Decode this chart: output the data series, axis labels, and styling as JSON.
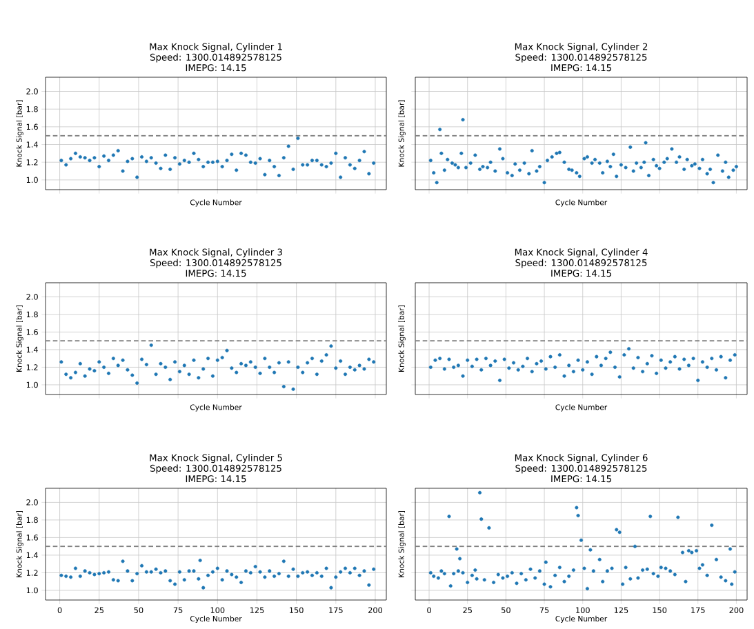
{
  "chart_data": [
    {
      "type": "scatter",
      "title": "Max Knock Signal, Cylinder 1",
      "subtitle": "Speed: 1300.014892578125",
      "annotations": [
        "IMEPG: 14.15"
      ],
      "xlabel": "Cycle Number",
      "ylabel": "Knock Signal [bar]",
      "xlim": [
        -9,
        207
      ],
      "ylim": [
        0.89,
        2.16
      ],
      "xticks": [
        0,
        25,
        50,
        75,
        100,
        125,
        150,
        175,
        200
      ],
      "yticks": [
        {
          "value": 1.0,
          "label": "1.0"
        },
        {
          "value": 1.2,
          "label": "1.2"
        },
        {
          "value": 1.4,
          "label": "1.4"
        },
        {
          "value": 1.6,
          "label": "1.6"
        },
        {
          "value": 1.8,
          "label": "1.8"
        },
        {
          "value": 2.0,
          "label": "2.0"
        }
      ],
      "tick_labels": "y",
      "grid": true,
      "marker": "circle",
      "ref_lines": [
        {
          "axis": "y",
          "value": 1.5,
          "color": "#808080",
          "line_style": "dashed"
        }
      ],
      "x": [
        1,
        4,
        7,
        10,
        13,
        16,
        19,
        22,
        25,
        28,
        31,
        34,
        37,
        40,
        43,
        46,
        49,
        52,
        55,
        58,
        61,
        64,
        67,
        70,
        73,
        76,
        79,
        82,
        85,
        88,
        91,
        94,
        97,
        100,
        103,
        106,
        109,
        112,
        115,
        118,
        121,
        124,
        127,
        130,
        133,
        136,
        139,
        142,
        145,
        148,
        151,
        154,
        157,
        160,
        163,
        166,
        169,
        172,
        175,
        178,
        181,
        184,
        187,
        190,
        193,
        196,
        199
      ],
      "series": [
        {
          "color": "#1f77b4",
          "values": [
            1.22,
            1.17,
            1.24,
            1.3,
            1.26,
            1.25,
            1.22,
            1.25,
            1.15,
            1.27,
            1.22,
            1.28,
            1.33,
            1.1,
            1.21,
            1.24,
            1.03,
            1.26,
            1.21,
            1.25,
            1.19,
            1.13,
            1.28,
            1.12,
            1.25,
            1.18,
            1.22,
            1.2,
            1.3,
            1.23,
            1.15,
            1.2,
            1.2,
            1.21,
            1.15,
            1.22,
            1.29,
            1.11,
            1.3,
            1.28,
            1.2,
            1.19,
            1.24,
            1.06,
            1.22,
            1.15,
            1.05,
            1.25,
            1.38,
            1.12,
            1.47,
            1.17,
            1.17,
            1.22,
            1.22,
            1.17,
            1.15,
            1.19,
            1.3,
            1.03,
            1.25,
            1.17,
            1.13,
            1.22,
            1.32,
            1.07,
            1.19
          ]
        }
      ]
    },
    {
      "type": "scatter",
      "title": "Max Knock Signal, Cylinder 2",
      "subtitle": "Speed: 1300.014892578125",
      "annotations": [
        "IMEPG: 14.15"
      ],
      "xlabel": "Cycle Number",
      "ylabel": "Knock Signal [bar]",
      "xlim": [
        -9,
        207
      ],
      "ylim": [
        0.89,
        2.16
      ],
      "xticks": [
        0,
        25,
        50,
        75,
        100,
        125,
        150,
        175,
        200
      ],
      "yticks": [
        {
          "value": 1.0,
          "label": null
        },
        {
          "value": 1.2,
          "label": null
        },
        {
          "value": 1.4,
          "label": null
        },
        {
          "value": 1.6,
          "label": null
        },
        {
          "value": 1.8,
          "label": null
        },
        {
          "value": 2.0,
          "label": null
        }
      ],
      "tick_labels": false,
      "grid": true,
      "marker": "circle",
      "ref_lines": [
        {
          "axis": "y",
          "value": 1.5,
          "color": "#808080",
          "line_style": "dashed"
        }
      ],
      "x": [
        1,
        3,
        5,
        7,
        8,
        10,
        12,
        15,
        17,
        19,
        21,
        22,
        24,
        27,
        30,
        33,
        35,
        38,
        40,
        43,
        46,
        48,
        51,
        54,
        56,
        59,
        62,
        65,
        67,
        70,
        72,
        75,
        77,
        80,
        83,
        85,
        88,
        91,
        93,
        96,
        98,
        101,
        103,
        106,
        108,
        111,
        113,
        116,
        118,
        120,
        122,
        125,
        128,
        131,
        133,
        135,
        138,
        140,
        141,
        143,
        146,
        148,
        150,
        153,
        155,
        158,
        161,
        163,
        166,
        168,
        171,
        173,
        176,
        178,
        181,
        183,
        185,
        188,
        191,
        193,
        195,
        198,
        200
      ],
      "series": [
        {
          "color": "#1f77b4",
          "values": [
            1.22,
            1.08,
            0.97,
            1.57,
            1.3,
            1.11,
            1.23,
            1.19,
            1.17,
            1.14,
            1.3,
            1.68,
            1.14,
            1.19,
            1.28,
            1.12,
            1.15,
            1.14,
            1.2,
            1.1,
            1.35,
            1.24,
            1.08,
            1.05,
            1.18,
            1.11,
            1.19,
            1.07,
            1.33,
            1.1,
            1.15,
            0.97,
            1.22,
            1.26,
            1.3,
            1.31,
            1.2,
            1.12,
            1.11,
            1.08,
            1.04,
            1.24,
            1.26,
            1.19,
            1.23,
            1.19,
            1.08,
            1.21,
            1.15,
            1.29,
            1.04,
            1.17,
            1.14,
            1.37,
            1.1,
            1.19,
            1.14,
            1.2,
            1.42,
            1.05,
            1.23,
            1.16,
            1.13,
            1.2,
            1.24,
            1.35,
            1.2,
            1.26,
            1.12,
            1.23,
            1.16,
            1.18,
            1.13,
            1.23,
            1.07,
            1.12,
            0.97,
            1.28,
            1.1,
            1.2,
            1.03,
            1.11,
            1.15
          ]
        }
      ]
    },
    {
      "type": "scatter",
      "title": "Max Knock Signal, Cylinder 3",
      "subtitle": "Speed: 1300.014892578125",
      "annotations": [
        "IMEPG: 14.15"
      ],
      "xlabel": "Cycle Number",
      "ylabel": "Knock Signal [bar]",
      "xlim": [
        -9,
        207
      ],
      "ylim": [
        0.89,
        2.16
      ],
      "xticks": [
        0,
        25,
        50,
        75,
        100,
        125,
        150,
        175,
        200
      ],
      "yticks": [
        {
          "value": 1.0,
          "label": "1.0"
        },
        {
          "value": 1.2,
          "label": "1.2"
        },
        {
          "value": 1.4,
          "label": "1.4"
        },
        {
          "value": 1.6,
          "label": "1.6"
        },
        {
          "value": 1.8,
          "label": "1.8"
        },
        {
          "value": 2.0,
          "label": "2.0"
        }
      ],
      "tick_labels": "y",
      "grid": true,
      "marker": "circle",
      "ref_lines": [
        {
          "axis": "y",
          "value": 1.5,
          "color": "#808080",
          "line_style": "dashed"
        }
      ],
      "x": [
        1,
        4,
        7,
        10,
        13,
        16,
        19,
        22,
        25,
        28,
        31,
        34,
        37,
        40,
        43,
        46,
        49,
        52,
        55,
        58,
        61,
        64,
        67,
        70,
        73,
        76,
        79,
        82,
        85,
        88,
        91,
        94,
        97,
        100,
        103,
        106,
        109,
        112,
        115,
        118,
        121,
        124,
        127,
        130,
        133,
        136,
        139,
        142,
        145,
        148,
        151,
        154,
        157,
        160,
        163,
        166,
        169,
        172,
        175,
        178,
        181,
        184,
        187,
        190,
        193,
        196,
        199
      ],
      "series": [
        {
          "color": "#1f77b4",
          "values": [
            1.26,
            1.12,
            1.08,
            1.14,
            1.24,
            1.1,
            1.18,
            1.16,
            1.26,
            1.2,
            1.13,
            1.3,
            1.22,
            1.28,
            1.17,
            1.11,
            1.02,
            1.29,
            1.23,
            1.45,
            1.12,
            1.24,
            1.2,
            1.06,
            1.26,
            1.15,
            1.22,
            1.12,
            1.28,
            1.08,
            1.18,
            1.3,
            1.1,
            1.28,
            1.31,
            1.39,
            1.19,
            1.14,
            1.24,
            1.22,
            1.26,
            1.2,
            1.13,
            1.3,
            1.2,
            1.14,
            1.25,
            0.98,
            1.26,
            0.95,
            1.2,
            1.14,
            1.25,
            1.3,
            1.12,
            1.27,
            1.34,
            1.44,
            1.19,
            1.27,
            1.12,
            1.2,
            1.17,
            1.22,
            1.18,
            1.29,
            1.26
          ]
        }
      ]
    },
    {
      "type": "scatter",
      "title": "Max Knock Signal, Cylinder 4",
      "subtitle": "Speed: 1300.014892578125",
      "annotations": [
        "IMEPG: 14.15"
      ],
      "xlabel": "Cycle Number",
      "ylabel": "Knock Signal [bar]",
      "xlim": [
        -9,
        207
      ],
      "ylim": [
        0.89,
        2.16
      ],
      "xticks": [
        0,
        25,
        50,
        75,
        100,
        125,
        150,
        175,
        200
      ],
      "yticks": [
        {
          "value": 1.0,
          "label": null
        },
        {
          "value": 1.2,
          "label": null
        },
        {
          "value": 1.4,
          "label": null
        },
        {
          "value": 1.6,
          "label": null
        },
        {
          "value": 1.8,
          "label": null
        },
        {
          "value": 2.0,
          "label": null
        }
      ],
      "tick_labels": false,
      "grid": true,
      "marker": "circle",
      "ref_lines": [
        {
          "axis": "y",
          "value": 1.5,
          "color": "#808080",
          "line_style": "dashed"
        }
      ],
      "x": [
        1,
        4,
        7,
        10,
        13,
        16,
        19,
        22,
        25,
        28,
        31,
        34,
        37,
        40,
        43,
        46,
        49,
        52,
        55,
        58,
        61,
        64,
        67,
        70,
        73,
        76,
        79,
        82,
        85,
        88,
        91,
        94,
        97,
        100,
        103,
        106,
        109,
        112,
        115,
        118,
        121,
        124,
        127,
        130,
        133,
        136,
        139,
        142,
        145,
        148,
        151,
        154,
        157,
        160,
        163,
        166,
        169,
        172,
        175,
        178,
        181,
        184,
        187,
        190,
        193,
        196,
        199
      ],
      "series": [
        {
          "color": "#1f77b4",
          "values": [
            1.2,
            1.28,
            1.3,
            1.18,
            1.29,
            1.2,
            1.22,
            1.1,
            1.28,
            1.21,
            1.29,
            1.17,
            1.3,
            1.22,
            1.27,
            1.05,
            1.29,
            1.19,
            1.25,
            1.17,
            1.21,
            1.3,
            1.15,
            1.24,
            1.27,
            1.18,
            1.32,
            1.2,
            1.34,
            1.1,
            1.22,
            1.15,
            1.28,
            1.17,
            1.26,
            1.12,
            1.32,
            1.22,
            1.3,
            1.37,
            1.2,
            1.09,
            1.34,
            1.41,
            1.19,
            1.31,
            1.15,
            1.24,
            1.33,
            1.13,
            1.28,
            1.19,
            1.26,
            1.32,
            1.18,
            1.29,
            1.22,
            1.3,
            1.05,
            1.26,
            1.2,
            1.3,
            1.17,
            1.32,
            1.08,
            1.28,
            1.34
          ]
        }
      ]
    },
    {
      "type": "scatter",
      "title": "Max Knock Signal, Cylinder 5",
      "subtitle": "Speed: 1300.014892578125",
      "annotations": [
        "IMEPG: 14.15"
      ],
      "xlabel": "Cycle Number",
      "ylabel": "Knock Signal [bar]",
      "xlim": [
        -9,
        207
      ],
      "ylim": [
        0.89,
        2.16
      ],
      "xticks": [
        0,
        25,
        50,
        75,
        100,
        125,
        150,
        175,
        200
      ],
      "yticks": [
        {
          "value": 1.0,
          "label": "1.0"
        },
        {
          "value": 1.2,
          "label": "1.2"
        },
        {
          "value": 1.4,
          "label": "1.4"
        },
        {
          "value": 1.6,
          "label": "1.6"
        },
        {
          "value": 1.8,
          "label": "1.8"
        },
        {
          "value": 2.0,
          "label": "2.0"
        }
      ],
      "grid": true,
      "marker": "circle",
      "ref_lines": [
        {
          "axis": "y",
          "value": 1.5,
          "color": "#808080",
          "line_style": "dashed"
        }
      ],
      "x": [
        1,
        4,
        7,
        10,
        13,
        16,
        19,
        22,
        25,
        28,
        31,
        34,
        37,
        40,
        43,
        46,
        49,
        52,
        55,
        58,
        61,
        64,
        67,
        70,
        73,
        76,
        79,
        82,
        85,
        88,
        89,
        91,
        94,
        97,
        100,
        103,
        106,
        109,
        112,
        115,
        118,
        121,
        124,
        127,
        130,
        133,
        136,
        139,
        142,
        145,
        148,
        151,
        154,
        157,
        160,
        163,
        166,
        169,
        172,
        175,
        178,
        181,
        184,
        187,
        190,
        193,
        196,
        199
      ],
      "series": [
        {
          "color": "#1f77b4",
          "values": [
            1.17,
            1.16,
            1.15,
            1.25,
            1.16,
            1.22,
            1.2,
            1.18,
            1.19,
            1.2,
            1.21,
            1.12,
            1.11,
            1.33,
            1.22,
            1.11,
            1.19,
            1.28,
            1.21,
            1.21,
            1.24,
            1.2,
            1.22,
            1.11,
            1.07,
            1.21,
            1.12,
            1.22,
            1.22,
            1.13,
            1.34,
            1.03,
            1.17,
            1.21,
            1.25,
            1.12,
            1.22,
            1.18,
            1.15,
            1.09,
            1.22,
            1.2,
            1.27,
            1.21,
            1.15,
            1.22,
            1.16,
            1.19,
            1.33,
            1.16,
            1.24,
            1.16,
            1.2,
            1.21,
            1.17,
            1.2,
            1.16,
            1.25,
            1.03,
            1.15,
            1.21,
            1.25,
            1.2,
            1.25,
            1.17,
            1.22,
            1.06,
            1.24
          ]
        }
      ]
    },
    {
      "type": "scatter",
      "title": "Max Knock Signal, Cylinder 6",
      "subtitle": "Speed: 1300.014892578125",
      "annotations": [
        "IMEPG: 14.15"
      ],
      "xlabel": "Cycle Number",
      "ylabel": "Knock Signal [bar]",
      "xlim": [
        -9,
        207
      ],
      "ylim": [
        0.89,
        2.16
      ],
      "xticks": [
        0,
        25,
        50,
        75,
        100,
        125,
        150,
        175,
        200
      ],
      "yticks": [
        {
          "value": 1.0,
          "label": null
        },
        {
          "value": 1.2,
          "label": null
        },
        {
          "value": 1.4,
          "label": null
        },
        {
          "value": 1.6,
          "label": null
        },
        {
          "value": 1.8,
          "label": null
        },
        {
          "value": 2.0,
          "label": null
        }
      ],
      "tick_labels": "x",
      "grid": true,
      "marker": "circle",
      "ref_lines": [
        {
          "axis": "y",
          "value": 1.5,
          "color": "#808080",
          "line_style": "dashed"
        }
      ],
      "x": [
        1,
        3,
        6,
        8,
        10,
        13,
        14,
        16,
        18,
        19,
        20,
        22,
        25,
        28,
        30,
        31,
        33,
        34,
        36,
        39,
        42,
        45,
        48,
        51,
        54,
        57,
        60,
        63,
        66,
        69,
        72,
        75,
        76,
        79,
        82,
        85,
        88,
        91,
        94,
        96,
        97,
        99,
        101,
        103,
        105,
        107,
        111,
        113,
        116,
        119,
        122,
        124,
        126,
        128,
        131,
        134,
        136,
        139,
        142,
        144,
        146,
        149,
        151,
        154,
        157,
        160,
        162,
        165,
        167,
        169,
        171,
        174,
        176,
        178,
        181,
        184,
        187,
        190,
        193,
        196,
        197,
        199
      ],
      "series": [
        {
          "color": "#1f77b4",
          "values": [
            1.2,
            1.16,
            1.14,
            1.22,
            1.19,
            1.84,
            1.05,
            1.19,
            1.47,
            1.22,
            1.36,
            1.2,
            1.09,
            1.17,
            1.23,
            1.13,
            2.11,
            1.81,
            1.12,
            1.71,
            1.09,
            1.18,
            1.14,
            1.16,
            1.2,
            1.08,
            1.19,
            1.12,
            1.24,
            1.14,
            1.22,
            1.07,
            1.32,
            1.04,
            1.17,
            1.26,
            1.1,
            1.16,
            1.23,
            1.94,
            1.85,
            1.57,
            1.25,
            1.02,
            1.46,
            1.22,
            1.35,
            1.1,
            1.22,
            1.25,
            1.69,
            1.66,
            1.07,
            1.26,
            1.13,
            1.5,
            1.14,
            1.23,
            1.24,
            1.84,
            1.19,
            1.16,
            1.26,
            1.25,
            1.22,
            1.18,
            1.83,
            1.43,
            1.1,
            1.45,
            1.43,
            1.45,
            1.25,
            1.29,
            1.17,
            1.74,
            1.35,
            1.15,
            1.11,
            1.47,
            1.07,
            1.21
          ]
        }
      ]
    }
  ]
}
